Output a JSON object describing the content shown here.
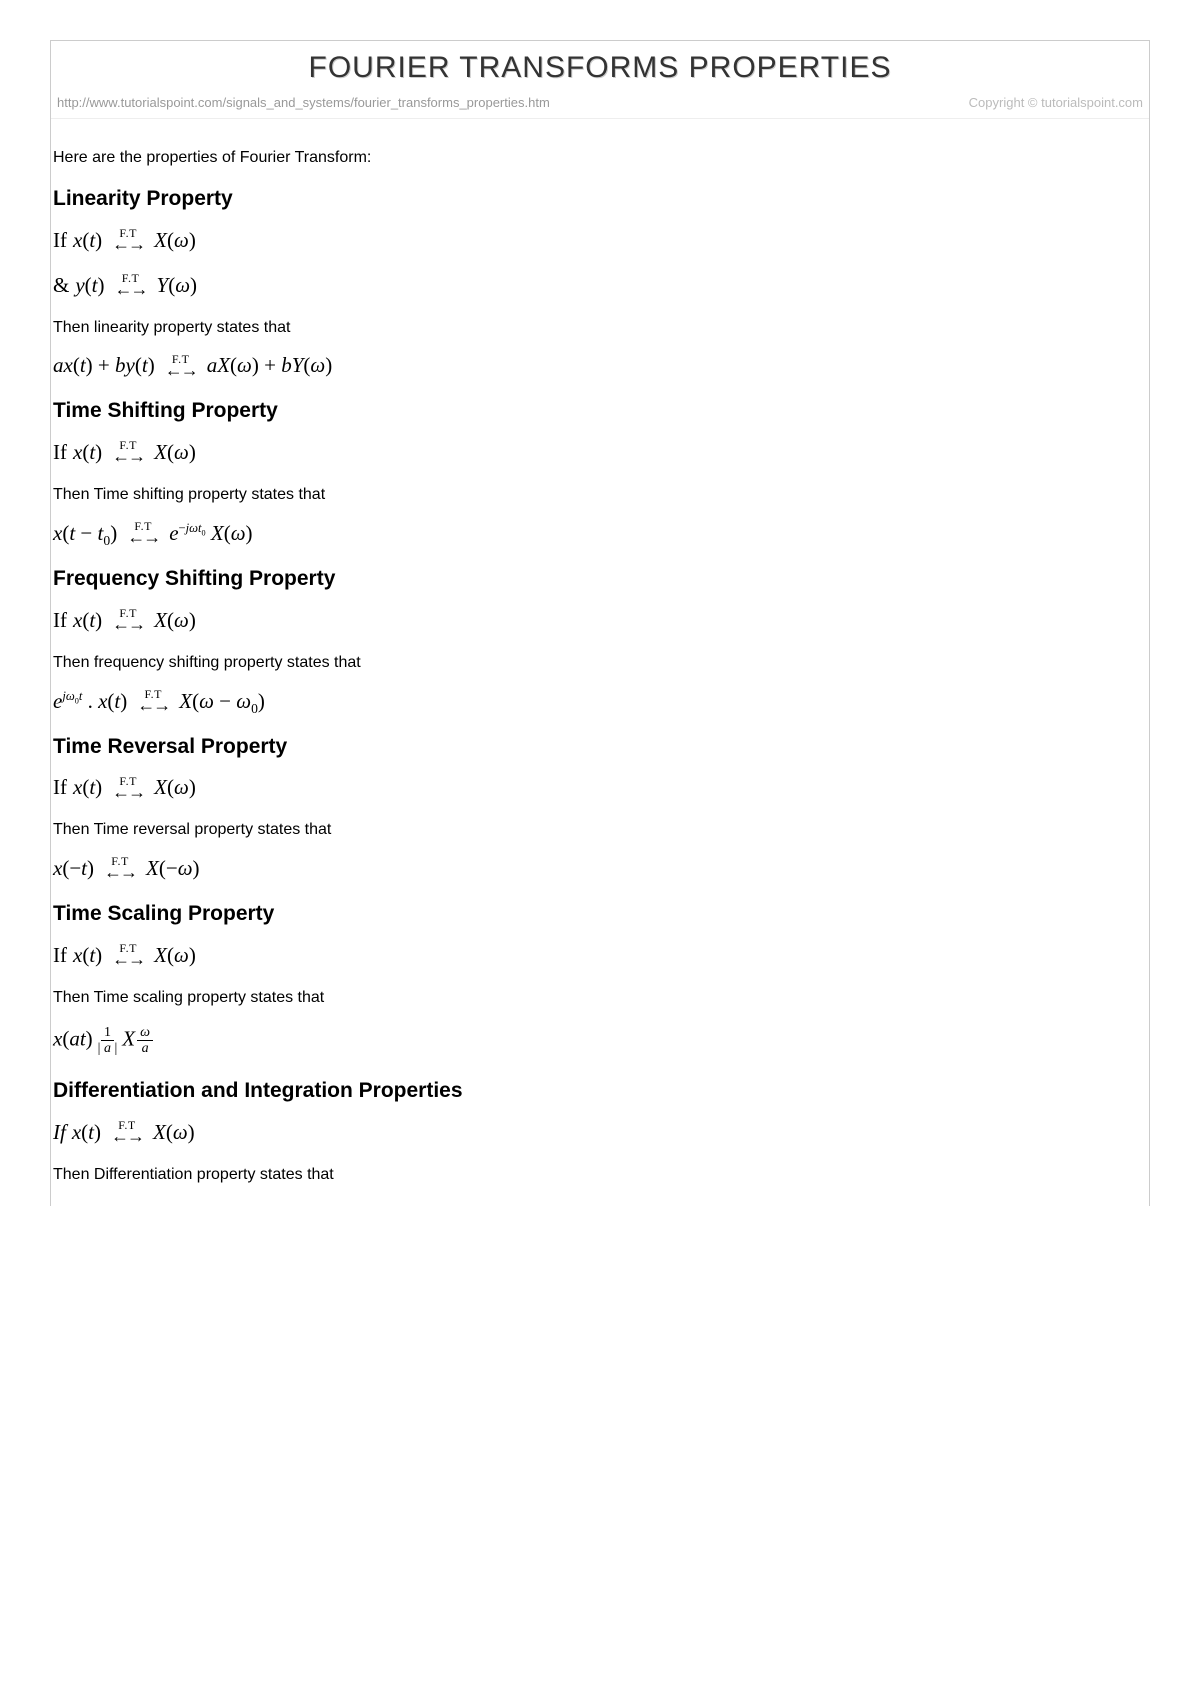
{
  "title": "FOURIER TRANSFORMS PROPERTIES",
  "url": "http://www.tutorialspoint.com/signals_and_systems/fourier_transforms_properties.htm",
  "copyright": "Copyright © tutorialspoint.com",
  "intro": "Here are the properties of Fourier Transform:",
  "ft_label": "F.T",
  "sections": {
    "linearity": {
      "heading": "Linearity Property",
      "line1_prefix": "If ",
      "line2_prefix": "& ",
      "body": "Then linearity property states that"
    },
    "time_shifting": {
      "heading": "Time Shifting Property",
      "line1_prefix": "If",
      "body": "Then Time shifting property states that"
    },
    "freq_shifting": {
      "heading": "Frequency Shifting Property",
      "line1_prefix": "If ",
      "body": "Then frequency shifting property states that"
    },
    "time_reversal": {
      "heading": "Time Reversal Property",
      "line1_prefix": "If ",
      "body": "Then Time reversal property states that"
    },
    "time_scaling": {
      "heading": "Time Scaling Property",
      "line1_prefix": "If ",
      "body": "Then Time scaling property states that"
    },
    "diff_int": {
      "heading": "Differentiation and Integration Properties",
      "line1_prefix": "If ",
      "body": "Then Differentiation property states that"
    }
  },
  "style": {
    "background_color": "#ffffff",
    "title_color": "#333333",
    "title_shadow": "#cccccc",
    "border_color": "#cccccc",
    "url_color": "#999999",
    "text_color": "#000000",
    "title_fontsize": 30,
    "heading_fontsize": 21,
    "body_fontsize": 16,
    "formula_fontsize": 21
  }
}
